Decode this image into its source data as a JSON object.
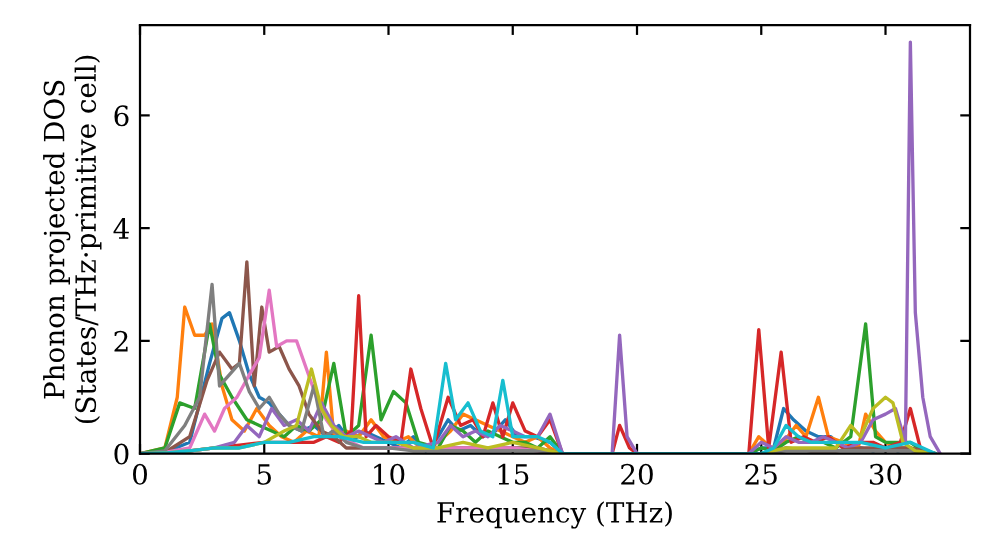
{
  "chart_data": {
    "type": "line",
    "xlabel": "Frequency (THz)",
    "ylabel": "Phonon projected DOS\n(States/THz·primitive cell)",
    "xlim": [
      0,
      33.4
    ],
    "ylim": [
      0,
      7.6
    ],
    "xticks": [
      0,
      5,
      10,
      15,
      20,
      25,
      30
    ],
    "yticks": [
      0,
      2,
      4,
      6
    ],
    "grid": false,
    "series": [
      {
        "color": "#1f77b4",
        "x": [
          0,
          1,
          2,
          2.8,
          3.3,
          3.6,
          4.0,
          4.4,
          4.8,
          5.2,
          5.6,
          6.0,
          6.5,
          7.0,
          7.5,
          8.0,
          8.5,
          9.0,
          9.5,
          10.0,
          10.5,
          11.0,
          11.5,
          12.0,
          12.4,
          12.8,
          13.3,
          13.8,
          14.3,
          14.7,
          15.2,
          15.8,
          16.5,
          17.0,
          24.5,
          25.0,
          25.5,
          25.9,
          26.3,
          26.8,
          27.3,
          27.8,
          28.3,
          29.0,
          29.5,
          30.0,
          30.5,
          31.0,
          31.5,
          32.0
        ],
        "values": [
          0,
          0.02,
          0.2,
          1.6,
          2.4,
          2.5,
          2.0,
          1.4,
          1.0,
          0.9,
          0.7,
          0.5,
          0.4,
          0.5,
          0.3,
          0.5,
          0.2,
          0.4,
          0.3,
          0.2,
          0.1,
          0.3,
          0.05,
          0.3,
          0.6,
          0.4,
          0.5,
          0.3,
          0.4,
          0.6,
          0.3,
          0.3,
          0.2,
          0,
          0,
          0.1,
          0.1,
          0.8,
          0.6,
          0.4,
          0.3,
          0.3,
          0.1,
          0.1,
          0.05,
          0.1,
          0.05,
          0.1,
          0.02,
          0
        ]
      },
      {
        "color": "#ff7f0e",
        "x": [
          0,
          1,
          1.5,
          1.8,
          2.2,
          2.6,
          2.9,
          3.3,
          3.7,
          4.2,
          4.7,
          5.2,
          5.7,
          6.2,
          6.7,
          7.2,
          7.5,
          7.8,
          8.3,
          8.8,
          9.3,
          9.8,
          10.3,
          10.8,
          11.3,
          12.0,
          12.5,
          13.0,
          13.5,
          14.0,
          14.5,
          15.0,
          15.5,
          16.0,
          16.5,
          17.0,
          24.5,
          24.9,
          25.4,
          25.9,
          26.4,
          26.8,
          27.3,
          27.7,
          28.3,
          28.9,
          29.2,
          29.6,
          30.0,
          30.5,
          31.0
        ],
        "values": [
          0,
          0.1,
          1.0,
          2.6,
          2.1,
          2.1,
          2.3,
          1.2,
          0.6,
          0.4,
          0.8,
          0.5,
          0.3,
          0.2,
          0.4,
          0.3,
          1.8,
          0.3,
          0.4,
          0.3,
          0.6,
          0.3,
          0.2,
          0.3,
          0.1,
          0.2,
          0.4,
          0.7,
          0.6,
          0.5,
          0.4,
          0.3,
          0.2,
          0.3,
          0.1,
          0,
          0,
          0.3,
          0.1,
          0.2,
          0.5,
          0.3,
          1.0,
          0.3,
          0.2,
          0.1,
          0.7,
          0.4,
          0.2,
          0.1,
          0.1
        ]
      },
      {
        "color": "#2ca02c",
        "x": [
          0,
          1,
          1.6,
          2.2,
          2.8,
          3.2,
          3.7,
          4.3,
          4.8,
          5.3,
          5.8,
          6.3,
          6.8,
          7.3,
          7.8,
          8.3,
          8.8,
          9.3,
          9.7,
          10.2,
          10.7,
          11.2,
          12.0,
          12.5,
          13.0,
          13.5,
          14.0,
          14.5,
          15.0,
          15.5,
          16.0,
          16.5,
          17.0,
          24.5,
          25.0,
          25.5,
          26.0,
          26.5,
          27.0,
          27.5,
          28.0,
          28.6,
          29.2,
          29.6,
          30.0,
          30.5,
          31.0,
          31.5,
          32.0
        ],
        "values": [
          0,
          0.1,
          0.9,
          0.8,
          2.3,
          1.4,
          1.0,
          0.6,
          0.5,
          0.4,
          0.3,
          0.5,
          0.4,
          0.6,
          1.6,
          0.3,
          0.5,
          2.1,
          0.6,
          1.1,
          0.9,
          0.2,
          0.1,
          0.5,
          0.4,
          0.2,
          0.4,
          0.3,
          0.2,
          0.2,
          0.1,
          0.3,
          0,
          0,
          0.1,
          0.05,
          0.2,
          0.3,
          0.2,
          0.2,
          0.1,
          0.3,
          2.3,
          0.3,
          0.2,
          0.2,
          0.2,
          0.05,
          0
        ]
      },
      {
        "color": "#d62728",
        "x": [
          2,
          3,
          4,
          5,
          6,
          7,
          7.5,
          8.0,
          8.5,
          8.8,
          9.1,
          9.5,
          10.0,
          10.5,
          10.9,
          11.3,
          11.8,
          12.4,
          12.9,
          13.4,
          13.8,
          14.2,
          14.6,
          15.0,
          15.5,
          16.0,
          16.5,
          17.0,
          19.0,
          19.3,
          19.7,
          20.0,
          24.5,
          24.9,
          25.3,
          25.8,
          26.2,
          26.7,
          27.2,
          27.7,
          28.3,
          29.0,
          29.5,
          30.0,
          30.6,
          31.0,
          31.4,
          32.0
        ],
        "values": [
          0.05,
          0.1,
          0.15,
          0.2,
          0.2,
          0.2,
          0.3,
          0.2,
          0.4,
          2.8,
          0.3,
          0.5,
          0.3,
          0.2,
          1.5,
          0.8,
          0.1,
          1.0,
          0.5,
          0.6,
          0.3,
          0.9,
          0.3,
          0.9,
          0.4,
          0.3,
          0.6,
          0,
          0,
          0.5,
          0.1,
          0,
          0,
          2.2,
          0.1,
          1.8,
          0.2,
          0.3,
          0.2,
          0.3,
          0.1,
          0.2,
          0.2,
          0.1,
          0.2,
          0.8,
          0.1,
          0
        ]
      },
      {
        "color": "#9467bd",
        "x": [
          0,
          1,
          2,
          3,
          3.8,
          4.3,
          4.8,
          5.3,
          5.8,
          6.3,
          6.8,
          7.3,
          7.8,
          8.3,
          8.8,
          9.3,
          9.8,
          10.3,
          11.0,
          12.0,
          12.5,
          13.0,
          13.5,
          14.0,
          14.5,
          15.0,
          15.5,
          16.0,
          16.5,
          17.0,
          19.0,
          19.3,
          19.6,
          20.0,
          24.5,
          25.0,
          25.5,
          26.0,
          26.5,
          27.0,
          27.5,
          28.0,
          28.5,
          29.0,
          29.5,
          30.0,
          30.4,
          30.8,
          31.0,
          31.2,
          31.5,
          31.8,
          32.2
        ],
        "values": [
          0,
          0.02,
          0.05,
          0.1,
          0.2,
          0.5,
          0.3,
          0.8,
          0.5,
          0.6,
          0.4,
          0.9,
          0.5,
          0.3,
          0.4,
          0.3,
          0.2,
          0.3,
          0.1,
          0.2,
          0.5,
          0.3,
          0.4,
          0.3,
          0.5,
          0.4,
          0.3,
          0.3,
          0.7,
          0,
          0,
          2.1,
          0.3,
          0,
          0,
          0.2,
          0.1,
          0.3,
          0.2,
          0.2,
          0.3,
          0.2,
          0.1,
          0.2,
          0.6,
          0.7,
          0.8,
          0.2,
          7.3,
          2.5,
          1.0,
          0.3,
          0
        ]
      },
      {
        "color": "#8c564b",
        "x": [
          0,
          1,
          2,
          2.7,
          3.2,
          3.7,
          4.0,
          4.3,
          4.6,
          4.9,
          5.2,
          5.6,
          6.0,
          6.4,
          6.8,
          7.3,
          7.8,
          8.3,
          9.0,
          10.0,
          11.0,
          12.0,
          13.0,
          14.0,
          15.0,
          16.0,
          17.0,
          25.0,
          26.0,
          27.0,
          28.0,
          29.0,
          30.0,
          31.0,
          32.0
        ],
        "values": [
          0,
          0.02,
          0.3,
          1.3,
          1.8,
          1.5,
          1.6,
          3.4,
          1.2,
          2.6,
          1.8,
          1.9,
          1.5,
          1.2,
          0.7,
          0.4,
          0.3,
          0.1,
          0.1,
          0.1,
          0.1,
          0.1,
          0.1,
          0.1,
          0.1,
          0.1,
          0,
          0,
          0.1,
          0.05,
          0.05,
          0.1,
          0.1,
          0.1,
          0
        ]
      },
      {
        "color": "#e377c2",
        "x": [
          0,
          1,
          2,
          2.6,
          3.0,
          3.4,
          3.9,
          4.4,
          4.8,
          5.2,
          5.5,
          5.9,
          6.3,
          6.7,
          7.1,
          7.5,
          8.0,
          8.5,
          9.0,
          10.0,
          11.0,
          12.0,
          13.0,
          14.0,
          15.0,
          16.0,
          17.0,
          25.0
        ],
        "values": [
          0,
          0.02,
          0.1,
          0.7,
          0.4,
          0.8,
          1.0,
          1.4,
          1.7,
          2.9,
          1.9,
          2.0,
          2.0,
          1.5,
          1.0,
          0.6,
          0.3,
          0.2,
          0.1,
          0.1,
          0.1,
          0.1,
          0.1,
          0.1,
          0.1,
          0.05,
          0,
          0
        ]
      },
      {
        "color": "#7f7f7f",
        "x": [
          0,
          1,
          1.8,
          2.4,
          2.9,
          3.2,
          3.6,
          4.0,
          4.4,
          4.8,
          5.2,
          5.6,
          6.0,
          6.5,
          7.0,
          7.4,
          7.8,
          8.3,
          9.0,
          10.0,
          11.0,
          12.0,
          13.0,
          14.0,
          15.0,
          16.0,
          17.0,
          25.0,
          26.0,
          27.0,
          28.0,
          29.0,
          30.0,
          31.0,
          32.0
        ],
        "values": [
          0,
          0.05,
          0.5,
          1.0,
          3.0,
          1.2,
          1.4,
          1.6,
          1.1,
          0.8,
          1.0,
          0.7,
          0.5,
          0.4,
          1.2,
          0.3,
          0.4,
          0.2,
          0.1,
          0.1,
          0.05,
          0.05,
          0.05,
          0.05,
          0.05,
          0.05,
          0,
          0,
          0.05,
          0.05,
          0.05,
          0.05,
          0.05,
          0.05,
          0
        ]
      },
      {
        "color": "#bcbd22",
        "x": [
          0,
          1,
          2,
          3,
          4,
          5,
          5.8,
          6.3,
          6.9,
          7.3,
          7.7,
          8.2,
          8.8,
          9.3,
          9.8,
          10.3,
          11.0,
          12.0,
          13.0,
          14.0,
          15.0,
          16.0,
          17.0,
          25.0,
          26.0,
          27.0,
          28.0,
          28.6,
          29.0,
          29.5,
          30.0,
          30.3,
          30.7,
          31.2,
          32.0
        ],
        "values": [
          0,
          0.01,
          0.05,
          0.1,
          0.1,
          0.2,
          0.4,
          0.5,
          1.5,
          0.8,
          0.5,
          0.3,
          0.3,
          0.2,
          0.2,
          0.2,
          0.1,
          0.1,
          0.2,
          0.1,
          0.2,
          0.1,
          0,
          0,
          0.1,
          0.1,
          0.1,
          0.5,
          0.3,
          0.8,
          1.0,
          0.9,
          0.2,
          0.05,
          0
        ]
      },
      {
        "color": "#17becf",
        "x": [
          0,
          1,
          2,
          3,
          4,
          5,
          6,
          7,
          8,
          9,
          10,
          11,
          11.8,
          12.3,
          12.7,
          13.2,
          13.7,
          14.2,
          14.6,
          15.0,
          15.5,
          16.0,
          16.5,
          17.0,
          25.0,
          25.5,
          26.0,
          26.5,
          27.0,
          28.0,
          29.0,
          30.0,
          31.0,
          32.0
        ],
        "values": [
          0,
          0.01,
          0.05,
          0.1,
          0.1,
          0.2,
          0.2,
          0.3,
          0.3,
          0.2,
          0.2,
          0.2,
          0.1,
          1.6,
          0.6,
          0.9,
          0.4,
          0.3,
          1.3,
          0.3,
          0.3,
          0.3,
          0.2,
          0,
          0,
          0.1,
          0.5,
          0.3,
          0.2,
          0.2,
          0.2,
          0.1,
          0.2,
          0
        ]
      }
    ]
  }
}
